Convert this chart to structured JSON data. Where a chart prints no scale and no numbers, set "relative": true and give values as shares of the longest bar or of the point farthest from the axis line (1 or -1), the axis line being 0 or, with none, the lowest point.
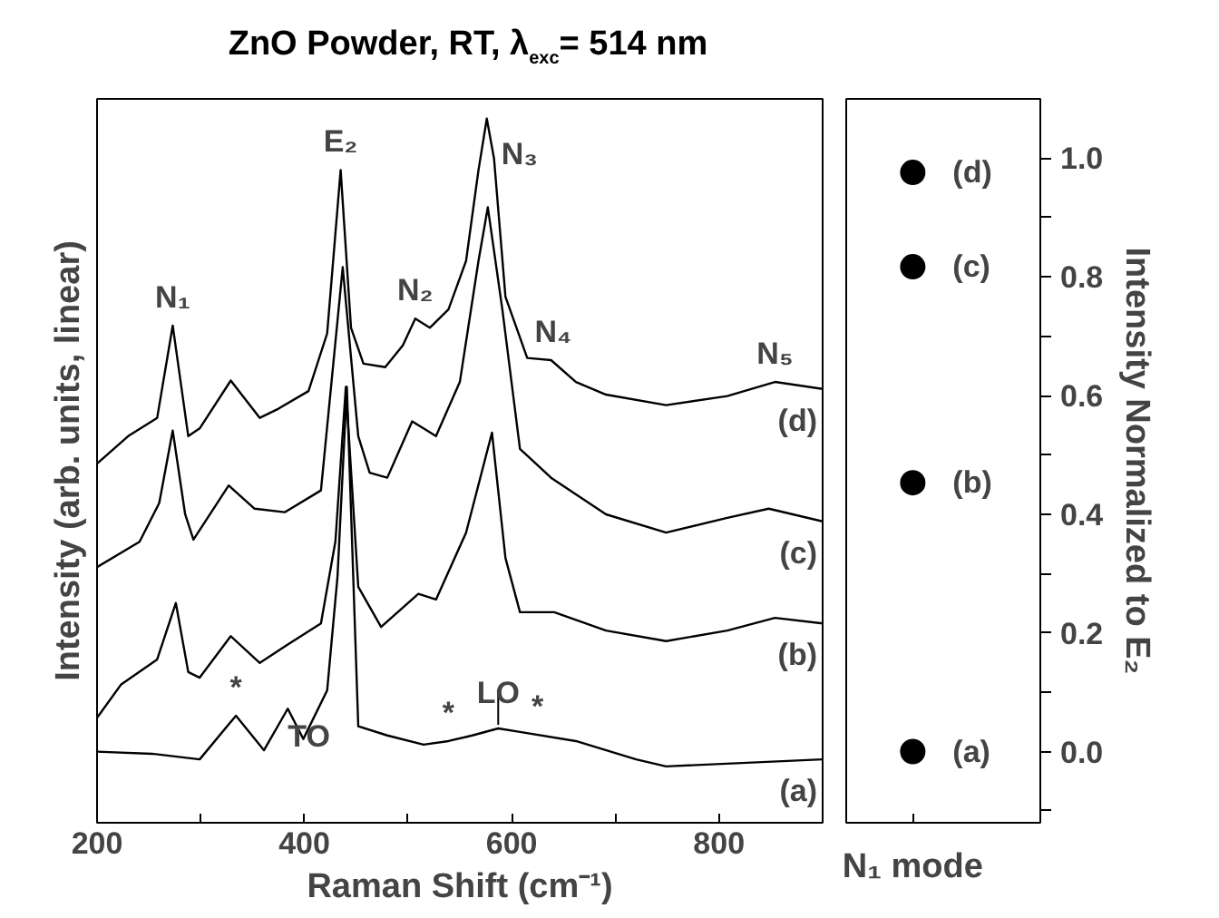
{
  "chart_data": [
    {
      "type": "line",
      "title": "ZnO Powder, RT, λ$_{exc}$= 514 nm",
      "xlabel": "Raman Shift (cm⁻¹)",
      "ylabel": "Intensity (arb. units, linear)",
      "relative": true,
      "xlim": [
        200,
        900
      ],
      "xticks": [
        200,
        {
          "value": 300,
          "label": null
        },
        400,
        {
          "value": 500,
          "label": null
        },
        600,
        {
          "value": 700,
          "label": null
        },
        800,
        {
          "value": 900,
          "label": null
        }
      ],
      "tick_labels": "x",
      "grid": false,
      "legend": false,
      "marker": "none",
      "line_style": "solid",
      "series": [
        {
          "name": "(d)",
          "color": "#000000",
          "x": [
            200,
            230,
            258,
            273,
            288,
            299,
            329,
            357,
            375,
            404,
            422,
            435,
            445,
            457,
            478,
            495,
            507,
            521,
            539,
            556,
            568,
            576,
            583,
            594,
            615,
            638,
            662,
            691,
            749,
            808,
            854,
            900
          ],
          "values": [
            0.51,
            0.549,
            0.575,
            0.706,
            0.549,
            0.56,
            0.628,
            0.575,
            0.588,
            0.613,
            0.695,
            0.927,
            0.703,
            0.652,
            0.647,
            0.678,
            0.716,
            0.703,
            0.729,
            0.798,
            0.927,
            1.0,
            0.943,
            0.747,
            0.66,
            0.657,
            0.626,
            0.608,
            0.593,
            0.606,
            0.626,
            0.616
          ]
        },
        {
          "name": "(c)",
          "color": "#000000",
          "x": [
            200,
            241,
            260,
            273,
            285,
            293,
            327,
            352,
            381,
            416,
            437,
            452,
            463,
            480,
            504,
            527,
            550,
            568,
            577,
            591,
            608,
            638,
            691,
            749,
            808,
            848,
            900
          ],
          "values": [
            0.363,
            0.399,
            0.454,
            0.557,
            0.438,
            0.402,
            0.479,
            0.446,
            0.441,
            0.472,
            0.789,
            0.549,
            0.497,
            0.49,
            0.57,
            0.549,
            0.626,
            0.798,
            0.874,
            0.729,
            0.531,
            0.49,
            0.438,
            0.412,
            0.433,
            0.446,
            0.428
          ]
        },
        {
          "name": "(b)",
          "color": "#000000",
          "x": [
            200,
            223,
            258,
            276,
            288,
            299,
            329,
            357,
            384,
            416,
            430,
            440,
            452,
            474,
            510,
            527,
            556,
            581,
            594,
            608,
            641,
            691,
            749,
            808,
            854,
            900
          ],
          "values": [
            0.149,
            0.196,
            0.232,
            0.312,
            0.214,
            0.206,
            0.265,
            0.227,
            0.253,
            0.283,
            0.4,
            0.619,
            0.335,
            0.278,
            0.325,
            0.317,
            0.412,
            0.554,
            0.376,
            0.299,
            0.299,
            0.273,
            0.258,
            0.273,
            0.291,
            0.283
          ]
        },
        {
          "name": "(a)",
          "color": "#000000",
          "x": [
            200,
            253,
            299,
            334,
            361,
            384,
            399,
            422,
            432,
            441,
            452,
            480,
            515,
            539,
            562,
            587,
            608,
            662,
            720,
            749,
            900
          ],
          "values": [
            0.101,
            0.098,
            0.09,
            0.152,
            0.103,
            0.162,
            0.119,
            0.188,
            0.35,
            0.619,
            0.137,
            0.124,
            0.111,
            0.116,
            0.124,
            0.134,
            0.129,
            0.116,
            0.09,
            0.08,
            0.09
          ]
        }
      ],
      "annotations": [
        {
          "text": "N₁",
          "x": 273,
          "y": 0.706
        },
        {
          "text": "E₂",
          "x": 435,
          "y": 0.927
        },
        {
          "text": "N₂",
          "x": 507,
          "y": 0.716
        },
        {
          "text": "N₃",
          "x": 576,
          "y": 1.0
        },
        {
          "text": "N₄",
          "x": 640,
          "y": 0.657
        },
        {
          "text": "N₅",
          "x": 854,
          "y": 0.626
        },
        {
          "text": "*",
          "x": 334,
          "y": 0.152
        },
        {
          "text": "TO",
          "x": 384,
          "y": 0.162
        },
        {
          "text": "*",
          "x": 539,
          "y": 0.116
        },
        {
          "text": "LO",
          "x": 587,
          "y": 0.134
        },
        {
          "text": "*",
          "x": 625,
          "y": 0.125
        }
      ]
    },
    {
      "type": "scatter",
      "ylabel": "Intensity Normalized to E₂",
      "categories": [
        "N₁ mode"
      ],
      "ylim": [
        -0.12,
        1.1
      ],
      "yticks": [
        {
          "value": -0.1,
          "label": null
        },
        {
          "value": 0,
          "label": "0.0"
        },
        {
          "value": 0.1,
          "label": null
        },
        {
          "value": 0.2,
          "label": "0.2"
        },
        {
          "value": 0.3,
          "label": null
        },
        {
          "value": 0.4,
          "label": "0.4"
        },
        {
          "value": 0.5,
          "label": null
        },
        {
          "value": 0.6,
          "label": "0.6"
        },
        {
          "value": 0.7,
          "label": null
        },
        {
          "value": 0.8,
          "label": "0.8"
        },
        {
          "value": 0.9,
          "label": null
        },
        {
          "value": 1,
          "label": "1.0"
        }
      ],
      "grid": false,
      "legend": "right",
      "marker": "circle",
      "series": [
        {
          "name": "(d)",
          "color": "#000000",
          "values": [
            0.976
          ]
        },
        {
          "name": "(c)",
          "color": "#000000",
          "values": [
            0.817
          ]
        },
        {
          "name": "(b)",
          "color": "#000000",
          "values": [
            0.453
          ]
        },
        {
          "name": "(a)",
          "color": "#000000",
          "values": [
            0.0
          ]
        }
      ]
    }
  ]
}
